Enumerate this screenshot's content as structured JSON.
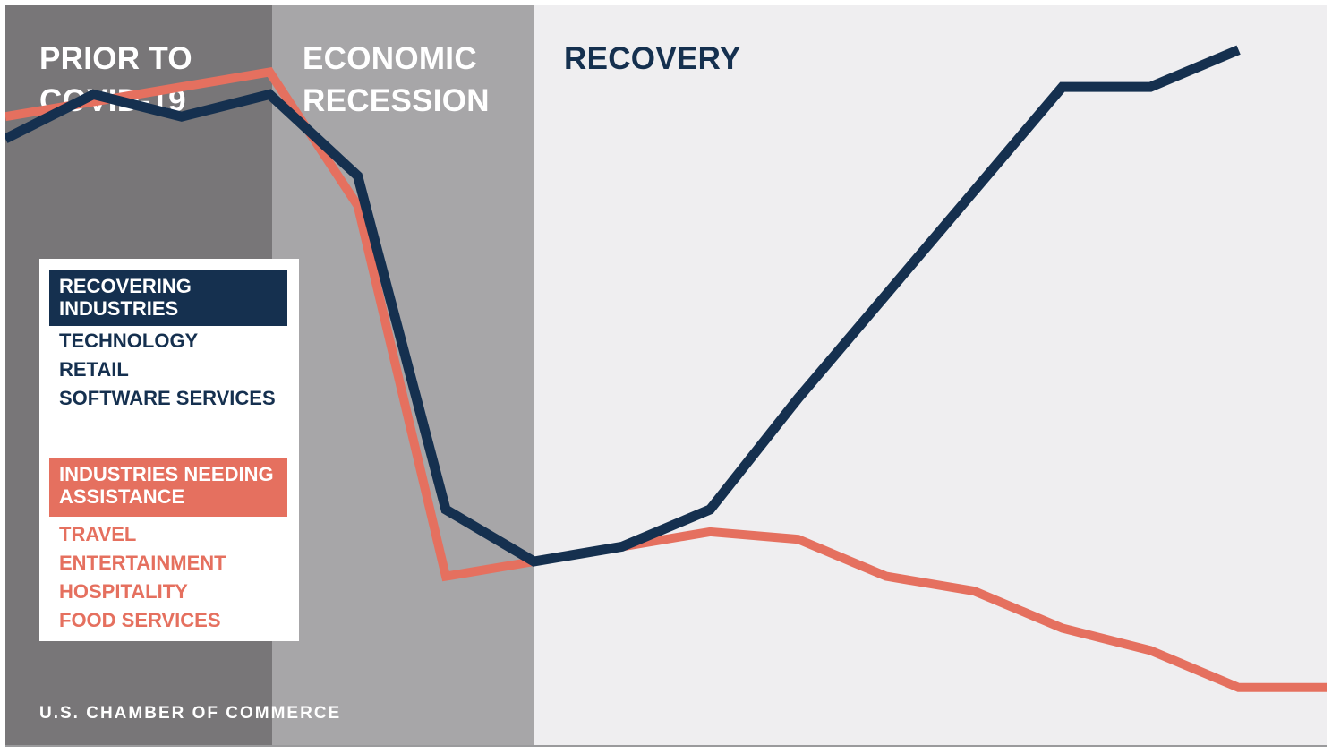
{
  "phases": {
    "prior": "PRIOR TO\nCOVID-19",
    "recession": "ECONOMIC\nRECESSION",
    "recovery": "RECOVERY"
  },
  "legend": {
    "recovering": {
      "title": "RECOVERING\nINDUSTRIES",
      "items": [
        "TECHNOLOGY",
        "RETAIL",
        "SOFTWARE SERVICES"
      ]
    },
    "assistance": {
      "title": "INDUSTRIES NEEDING\nASSISTANCE",
      "items": [
        "TRAVEL",
        "ENTERTAINMENT",
        "HOSPITALITY",
        "FOOD SERVICES"
      ]
    }
  },
  "source": "U.S. CHAMBER OF COMMERCE",
  "colors": {
    "recovering": "#15304f",
    "assistance": "#e5705f",
    "prior_bg": "#787678",
    "recession_bg": "#a7a6a8",
    "recovery_bg": "#efeef0"
  },
  "chart_data": {
    "type": "line",
    "title": "",
    "xlabel": "",
    "ylabel": "",
    "grid": false,
    "legend_position": "left",
    "x": [
      0,
      1,
      2,
      3,
      4,
      5,
      6,
      7,
      8,
      9,
      10,
      11,
      12,
      13,
      14,
      15
    ],
    "ylim": [
      0,
      100
    ],
    "phase_boundaries": [
      3,
      6
    ],
    "series": [
      {
        "key": "recovering",
        "color": "#15304f",
        "values": [
          82,
          88,
          85,
          88,
          77,
          32,
          25,
          27,
          32,
          47,
          61,
          75,
          89,
          89,
          94,
          null
        ]
      },
      {
        "key": "assistance",
        "color": "#e5705f",
        "values": [
          85,
          87,
          89,
          91,
          73,
          23,
          25,
          27,
          29,
          28,
          23,
          21,
          16,
          13,
          8,
          8
        ]
      }
    ]
  }
}
